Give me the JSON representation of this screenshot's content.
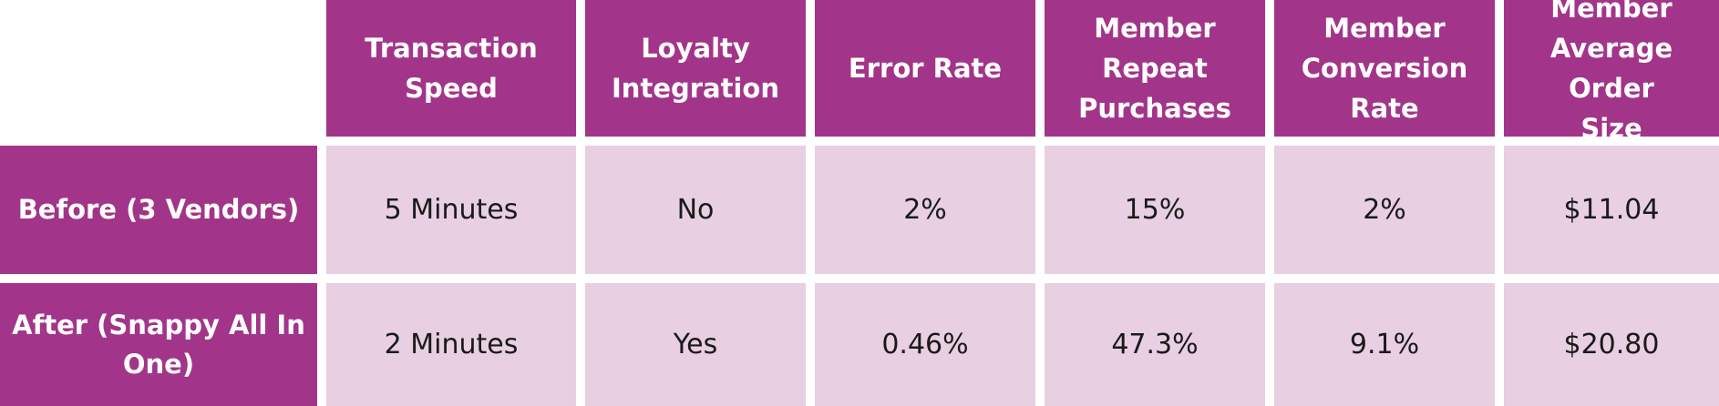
{
  "table": {
    "columns": [
      "Transaction Speed",
      "Loyalty Integration",
      "Error Rate",
      "Member Repeat Purchases",
      "Member Conversion Rate",
      "Member Average Order Size"
    ],
    "column_lines": [
      [
        "Transaction",
        "Speed"
      ],
      [
        "Loyalty",
        "Integration"
      ],
      [
        "Error Rate"
      ],
      [
        "Member",
        "Repeat",
        "Purchases"
      ],
      [
        "Member",
        "Conversion",
        "Rate"
      ],
      [
        "Member",
        "Average Order",
        "Size"
      ]
    ],
    "rows": [
      {
        "label": "Before (3 Vendors)",
        "values": [
          "5 Minutes",
          "No",
          "2%",
          "15%",
          "2%",
          "$11.04"
        ]
      },
      {
        "label": "After (Snappy All In One)",
        "label_lines": [
          "After (Snappy All In",
          "One)"
        ],
        "values": [
          "2 Minutes",
          "Yes",
          "0.46%",
          "47.3%",
          "9.1%",
          "$20.80"
        ]
      }
    ]
  },
  "colors": {
    "header_bg": "#a2358a",
    "cell_bg": "#e8cfe2",
    "header_text": "#ffffff",
    "cell_text": "#1a1a1a"
  }
}
